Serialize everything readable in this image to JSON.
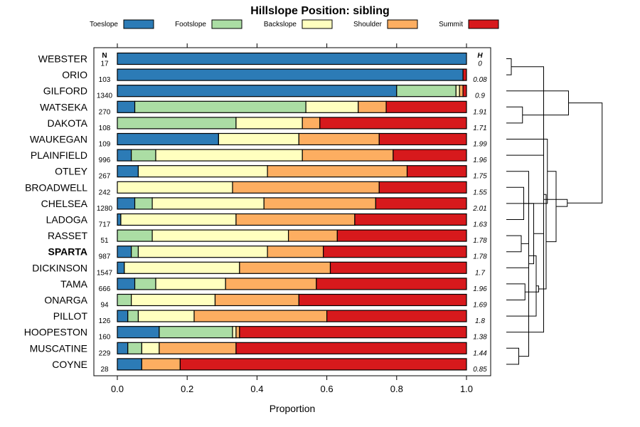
{
  "chart_data": {
    "type": "bar",
    "stacked": true,
    "orientation": "horizontal",
    "title": "Hillslope Position: sibling",
    "xlabel": "Proportion",
    "ylabel": "",
    "xlim": [
      0,
      1
    ],
    "x_ticks": [
      0,
      0.2,
      0.4,
      0.6,
      0.8,
      1
    ],
    "x_tick_labels": [
      "0.0",
      "0.2",
      "0.4",
      "0.6",
      "0.8",
      "1.0"
    ],
    "legend": {
      "placement": "top",
      "entries": [
        {
          "name": "Toeslope",
          "color": "#2c7bb6"
        },
        {
          "name": "Footslope",
          "color": "#abdda4"
        },
        {
          "name": "Backslope",
          "color": "#ffffbf"
        },
        {
          "name": "Shoulder",
          "color": "#fdae61"
        },
        {
          "name": "Summit",
          "color": "#d7191c"
        }
      ]
    },
    "n_header": "N",
    "h_header": "H",
    "highlighted_series": "SPARTA",
    "categories": [
      "WEBSTER",
      "ORIO",
      "GILFORD",
      "WATSEKA",
      "DAKOTA",
      "WAUKEGAN",
      "PLAINFIELD",
      "OTLEY",
      "BROADWELL",
      "CHELSEA",
      "LADOGA",
      "RASSET",
      "SPARTA",
      "DICKINSON",
      "TAMA",
      "ONARGA",
      "PILLOT",
      "HOOPESTON",
      "MUSCATINE",
      "COYNE"
    ],
    "n": [
      "17",
      "103",
      "1340",
      "270",
      "108",
      "109",
      "996",
      "267",
      "242",
      "1280",
      "717",
      "51",
      "987",
      "1547",
      "666",
      "94",
      "126",
      "160",
      "229",
      "28"
    ],
    "h": [
      "0",
      "0.08",
      "0.9",
      "1.91",
      "1.71",
      "1.99",
      "1.96",
      "1.75",
      "1.55",
      "2.01",
      "1.63",
      "1.78",
      "1.78",
      "1.7",
      "1.96",
      "1.69",
      "1.8",
      "1.38",
      "1.44",
      "0.85"
    ],
    "series": [
      {
        "name": "Toeslope",
        "values": [
          1.0,
          0.99,
          0.8,
          0.05,
          0.0,
          0.29,
          0.04,
          0.06,
          0.0,
          0.05,
          0.01,
          0.0,
          0.04,
          0.02,
          0.05,
          0.0,
          0.03,
          0.12,
          0.03,
          0.07
        ]
      },
      {
        "name": "Footslope",
        "values": [
          0.0,
          0.0,
          0.17,
          0.49,
          0.34,
          0.0,
          0.07,
          0.0,
          0.0,
          0.05,
          0.0,
          0.1,
          0.02,
          0.0,
          0.06,
          0.04,
          0.03,
          0.21,
          0.04,
          0.0
        ]
      },
      {
        "name": "Backslope",
        "values": [
          0.0,
          0.0,
          0.01,
          0.15,
          0.19,
          0.23,
          0.42,
          0.37,
          0.33,
          0.32,
          0.33,
          0.39,
          0.37,
          0.33,
          0.2,
          0.24,
          0.16,
          0.01,
          0.05,
          0.0
        ]
      },
      {
        "name": "Shoulder",
        "values": [
          0.0,
          0.0,
          0.01,
          0.08,
          0.05,
          0.23,
          0.26,
          0.4,
          0.42,
          0.32,
          0.34,
          0.14,
          0.16,
          0.26,
          0.26,
          0.24,
          0.38,
          0.01,
          0.22,
          0.11
        ]
      },
      {
        "name": "Summit",
        "values": [
          0.0,
          0.01,
          0.01,
          0.23,
          0.42,
          0.25,
          0.21,
          0.17,
          0.25,
          0.26,
          0.32,
          0.37,
          0.41,
          0.39,
          0.43,
          0.48,
          0.4,
          0.65,
          0.66,
          0.82
        ]
      }
    ],
    "dendrogram_merges": [
      [
        0,
        1,
        0.04
      ],
      [
        18,
        19,
        0.1
      ],
      [
        3,
        4,
        0.13
      ],
      [
        8,
        10,
        0.14
      ],
      [
        7,
        21,
        0.18
      ],
      [
        11,
        12,
        0.12
      ],
      [
        13,
        25,
        0.18
      ],
      [
        9,
        24,
        0.22
      ],
      [
        14,
        15,
        0.15
      ],
      [
        6,
        27,
        0.3
      ],
      [
        26,
        16,
        0.24
      ],
      [
        28,
        30,
        0.26
      ],
      [
        23,
        5,
        0.33
      ],
      [
        17,
        20,
        0.3
      ],
      [
        29,
        31,
        0.32
      ],
      [
        2,
        22,
        0.5
      ],
      [
        32,
        34,
        0.4
      ],
      [
        36,
        33,
        0.49
      ],
      [
        35,
        37,
        0.77
      ]
    ]
  }
}
